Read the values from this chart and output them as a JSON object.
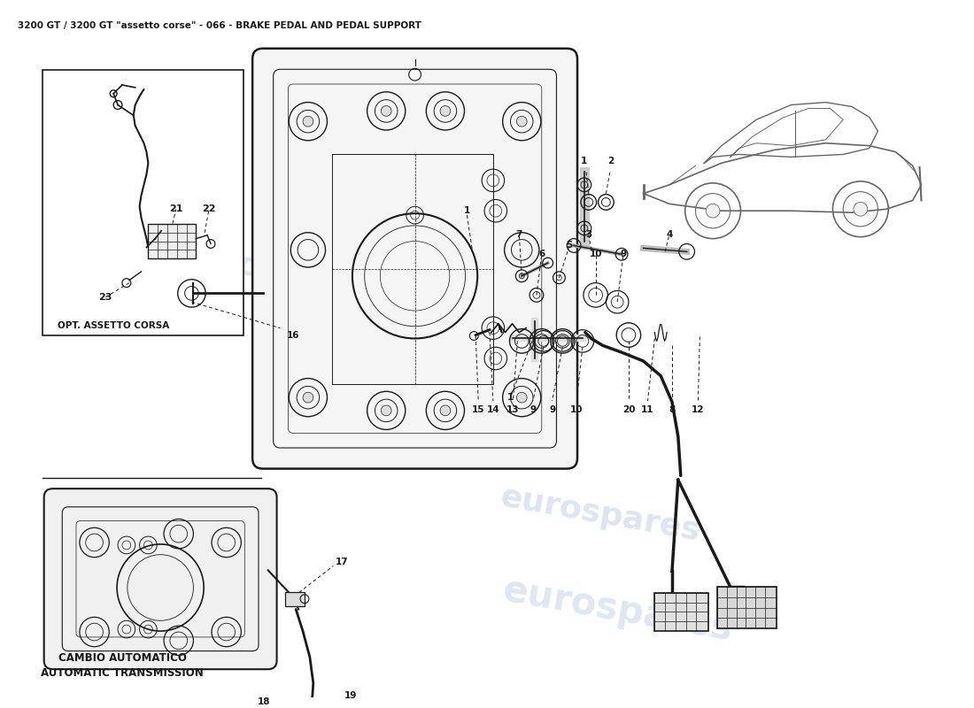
{
  "title": "3200 GT / 3200 GT \"assetto corse\" - 066 - BRAKE PEDAL AND PEDAL SUPPORT",
  "title_fontsize": 7.5,
  "background_color": "#ffffff",
  "line_color": "#1a1a1a",
  "light_color": "#666666",
  "watermark_color": "#c8d4e8",
  "watermark_text": "eurospares",
  "label_opt_assetto": "OPT. ASSETTO CORSA",
  "label_cambio_line1": "CAMBIO AUTOMATICO",
  "label_cambio_line2": "AUTOMATIC TRANSMISSION",
  "fig_width": 11.0,
  "fig_height": 8.0,
  "dpi": 100
}
